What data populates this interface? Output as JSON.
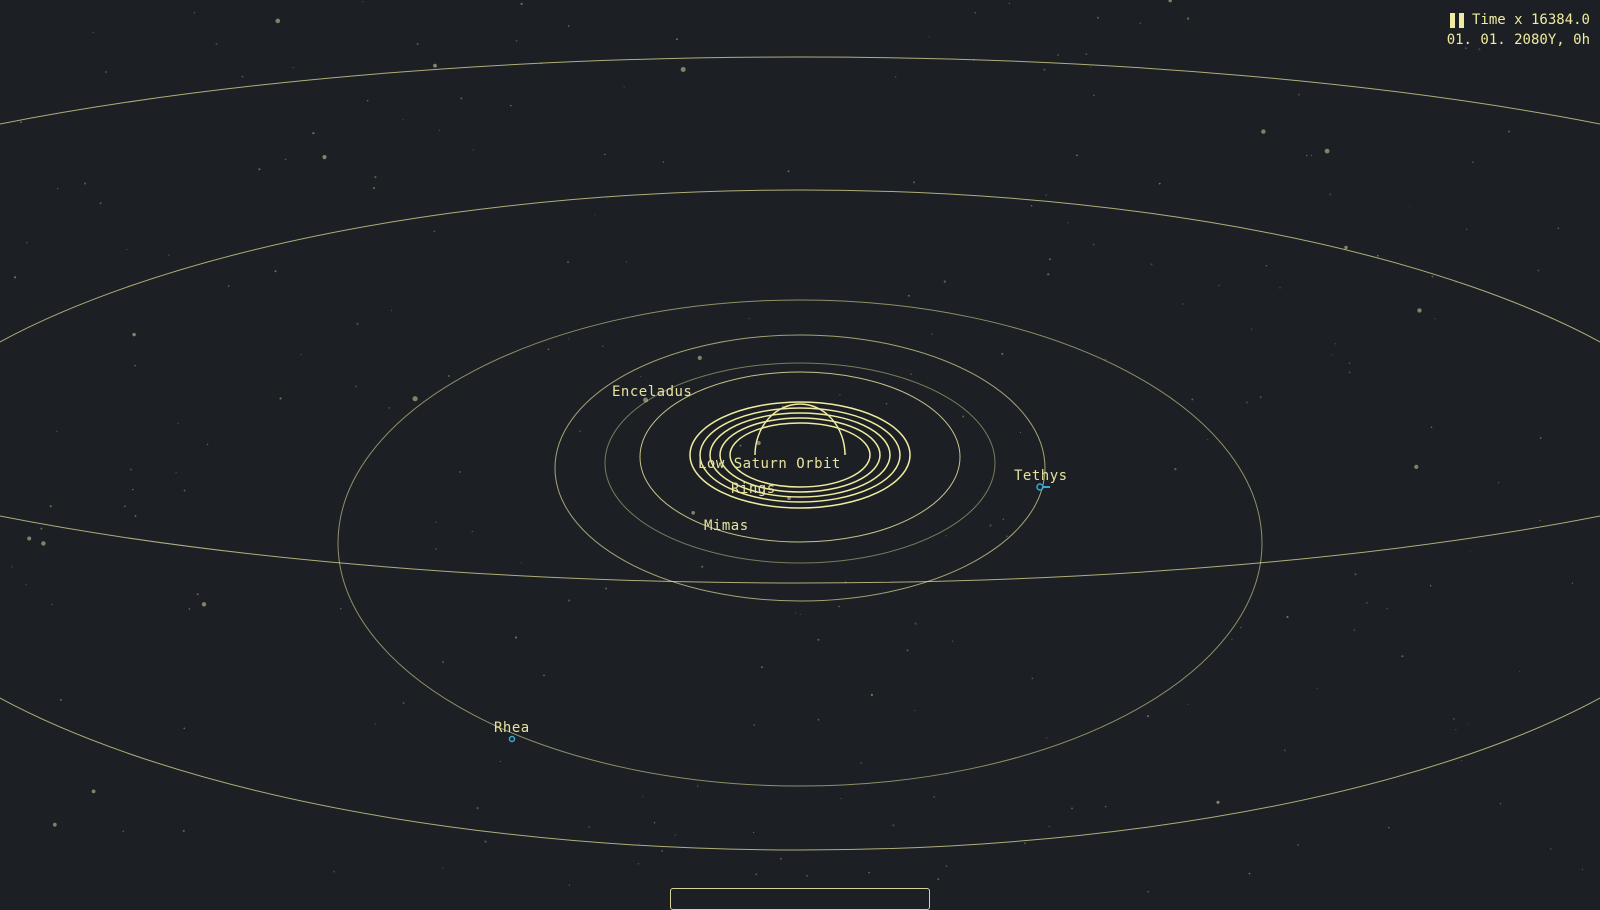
{
  "hud": {
    "time_label": "Time x 16384.0",
    "date_label": "01. 01. 2080Y,  0h",
    "pause_icon": "pause-icon"
  },
  "bodies": {
    "enceladus": "Enceladus",
    "low_saturn_orbit": "Low Saturn Orbit",
    "rings": "Rings",
    "mimas": "Mimas",
    "tethys": "Tethys",
    "rhea": "Rhea"
  },
  "colors": {
    "background": "#1c2024",
    "orbit": "#f0eba0",
    "moon_marker": "#38a8d8"
  }
}
